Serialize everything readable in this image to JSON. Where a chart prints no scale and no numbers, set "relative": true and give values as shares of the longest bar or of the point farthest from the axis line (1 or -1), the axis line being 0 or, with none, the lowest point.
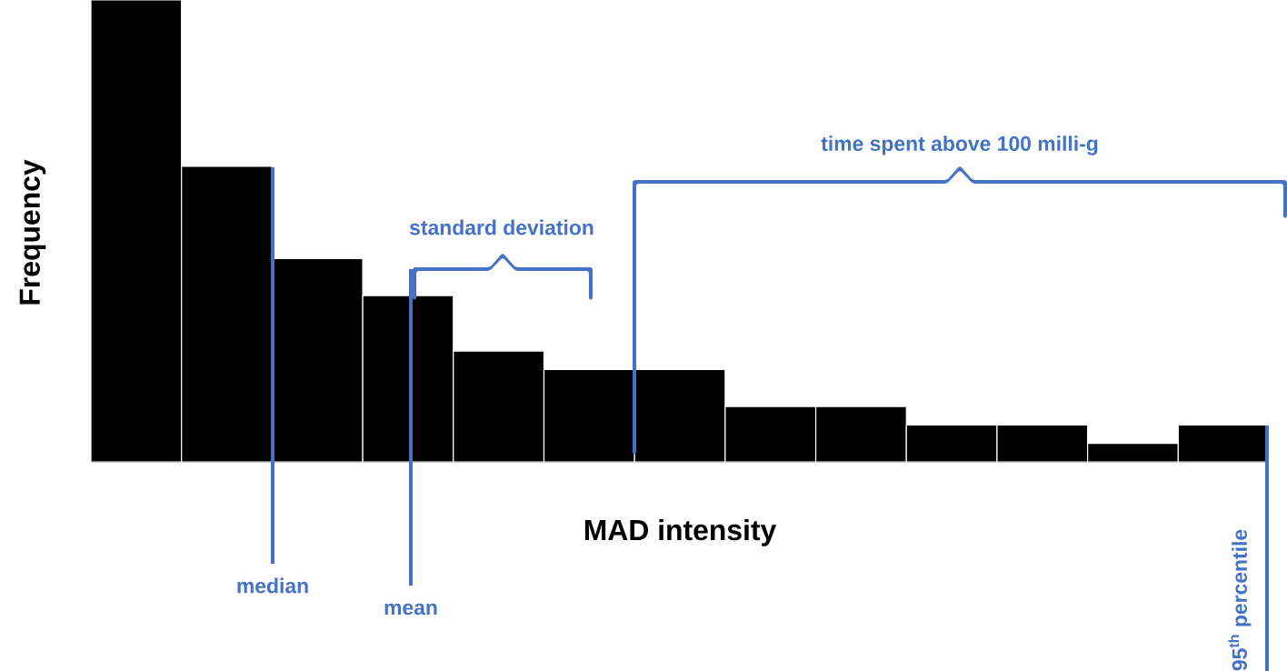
{
  "chart_data": {
    "type": "bar",
    "relative": true,
    "xlabel": "MAD intensity",
    "ylabel": "Frequency",
    "color": "#000000",
    "categories": [
      null,
      null,
      null,
      null,
      null,
      null,
      null,
      null,
      null,
      null,
      null,
      null,
      null
    ],
    "values": [
      1,
      0.64,
      0.44,
      0.36,
      0.24,
      0.2,
      0.2,
      0.12,
      0.12,
      0.08,
      0.08,
      0.04,
      0.08
    ],
    "annotations": [
      "median",
      "mean",
      "standard deviation",
      "time spent above 100 milli-g",
      "95$^{th}$ percentile"
    ]
  }
}
